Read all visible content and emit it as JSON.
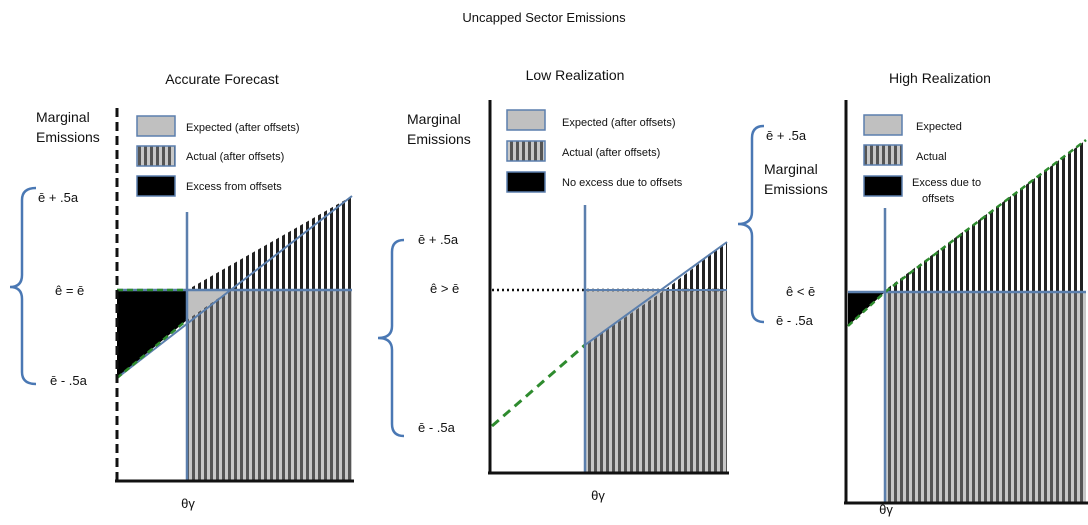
{
  "title": "Uncapped Sector Emissions",
  "panels": [
    {
      "title": "Accurate Forecast",
      "ylabel_line1": "Marginal",
      "ylabel_line2": "Emissions",
      "label_top": "ē + .5a",
      "label_mid": "ê = ē",
      "label_bottom": "ē - .5a",
      "xlabel": "θγ",
      "legend": [
        "Expected (after offsets)",
        "Actual (after offsets)",
        "Excess from offsets"
      ]
    },
    {
      "title": "Low Realization",
      "ylabel_line1": "Marginal",
      "ylabel_line2": "Emissions",
      "label_top": "ē + .5a",
      "label_mid": "ê > ē",
      "label_bottom": "ē - .5a",
      "xlabel": "θγ",
      "legend": [
        "Expected (after offsets)",
        "Actual (after offsets)",
        "No excess due to offsets"
      ]
    },
    {
      "title": "High Realization",
      "ylabel_line1": "Marginal",
      "ylabel_line2": "Emissions",
      "label_top": "ē + .5a",
      "label_mid": "ê < ē",
      "label_bottom": "ē - .5a",
      "xlabel": "θγ",
      "legend_line1": [
        "Expected",
        "Actual",
        "Excess due to"
      ],
      "legend_line2_excess": "offsets"
    }
  ],
  "colors": {
    "expected_fill": "#c0c0c0",
    "actual_stripe_dark": "#222222",
    "excess_fill": "#000000",
    "axis_blue": "#5b7fad",
    "dashed_green": "#2e8b2e",
    "brace_blue": "#4a78b4"
  }
}
